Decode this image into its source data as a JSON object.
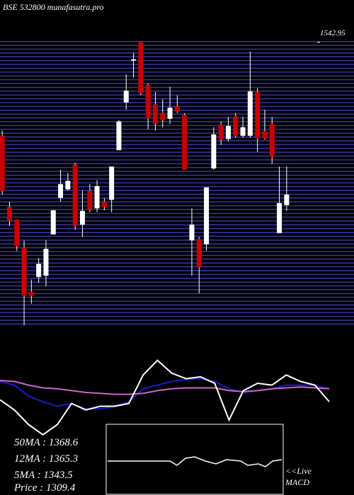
{
  "chart_data": [
    {
      "type": "candlestick",
      "title": "BSE 532800 munafasutra.pro",
      "categories": [
        null,
        null,
        null,
        null,
        null,
        null,
        null,
        null,
        null,
        null,
        null,
        null,
        null,
        null,
        null,
        null,
        null,
        null,
        null,
        null,
        null,
        null,
        null,
        null,
        null,
        null,
        null,
        null,
        null,
        null,
        null,
        null,
        null,
        null,
        null,
        null,
        null,
        null,
        null,
        null
      ],
      "open": [
        1400,
        1291,
        1272,
        1229,
        1161,
        1184,
        1186,
        1249,
        1305,
        1318,
        1356,
        1264,
        1316,
        1289,
        1299,
        1302,
        1378,
        1451,
        1515,
        1543,
        1478,
        1448,
        1435,
        1426,
        1445,
        1432,
        1240,
        1242,
        1234,
        1350,
        1417,
        1395,
        1430,
        1400,
        1400,
        1467,
        1407,
        1418,
        1251,
        1294
      ],
      "high": [
        1408,
        1299,
        1272,
        1240,
        1180,
        1213,
        1240,
        1286,
        1348,
        1343,
        1359,
        1316,
        1326,
        1332,
        1305,
        1353,
        1424,
        1494,
        1527,
        1543,
        1480,
        1467,
        1456,
        1475,
        1462,
        1435,
        1289,
        1245,
        1321,
        1413,
        1422,
        1429,
        1435,
        1429,
        1529,
        1473,
        1440,
        1429,
        1353,
        1353
      ],
      "low": [
        1310,
        1262,
        1224,
        1110,
        1143,
        1175,
        1170,
        1249,
        1299,
        1316,
        1256,
        1245,
        1283,
        1283,
        1286,
        1283,
        1378,
        1440,
        1489,
        1462,
        1410,
        1408,
        1413,
        1418,
        1435,
        1348,
        1186,
        1159,
        1224,
        1348,
        1386,
        1391,
        1397,
        1397,
        1397,
        1375,
        1394,
        1357,
        1251,
        1285
      ],
      "close": [
        1316,
        1270,
        1231,
        1155,
        1155,
        1204,
        1227,
        1286,
        1326,
        1331,
        1262,
        1285,
        1287,
        1323,
        1291,
        1353,
        1422,
        1469,
        1517,
        1465,
        1427,
        1418,
        1424,
        1443,
        1437,
        1348,
        1264,
        1199,
        1321,
        1402,
        1394,
        1415,
        1400,
        1413,
        1468,
        1396,
        1396,
        1368,
        1297,
        1310
      ],
      "up_color": "#ffffff",
      "down_color": "#cc0000",
      "ylim": [
        1110,
        1545
      ],
      "yticks": [
        1542.95
      ]
    },
    {
      "type": "line",
      "categories": [
        null,
        null,
        null,
        null,
        null,
        null,
        null,
        null,
        null,
        null,
        null,
        null,
        null,
        null,
        null,
        null,
        null,
        null,
        null,
        null,
        null,
        null,
        null,
        null
      ],
      "series": [
        {
          "color": "#1a1acc",
          "values": [
            62,
            58,
            46,
            40,
            35,
            38,
            32,
            32,
            35,
            40,
            54,
            58,
            62,
            64,
            65,
            62,
            54,
            50,
            52,
            54,
            58,
            58,
            58,
            54
          ]
        },
        {
          "color": "#cc66cc",
          "values": [
            63,
            62,
            58,
            55,
            54,
            52,
            50,
            49,
            48,
            48,
            49,
            52,
            54,
            55,
            55,
            55,
            52,
            51,
            52,
            54,
            55,
            56,
            55,
            54
          ]
        },
        {
          "color": "#ffffff",
          "values": [
            42,
            31,
            15,
            4,
            15,
            38,
            31,
            35,
            35,
            38,
            69,
            85,
            71,
            65,
            67,
            60,
            20,
            52,
            60,
            58,
            69,
            62,
            58,
            40
          ]
        }
      ],
      "ylim": [
        0,
        100
      ]
    }
  ],
  "stats": [
    "50MA : 1368.6",
    "12MA : 1365.3",
    "5MA : 1343.5",
    "Price   : 1309.4"
  ],
  "macd_label": [
    "<<Live",
    "MACD"
  ]
}
